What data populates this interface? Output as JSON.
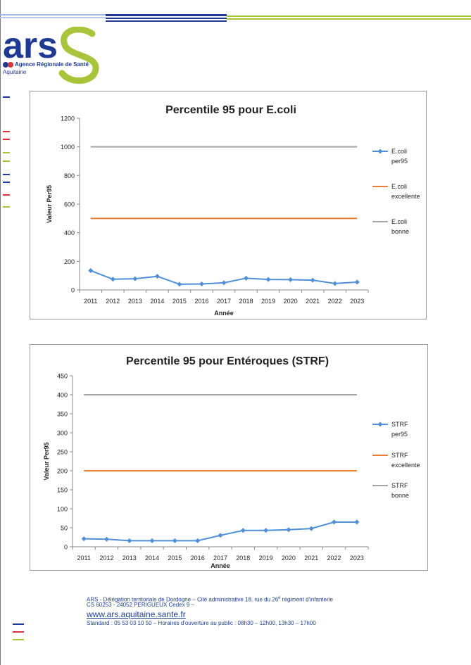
{
  "header": {
    "logo_text": "ars",
    "logo_caption_line1": "Agence Régionale de Santé",
    "logo_caption_line2": "Aquitaine"
  },
  "colors": {
    "navy": "#1f3a93",
    "green": "#a8c43a",
    "red": "#d9343b",
    "series_line": "#4f8fd6",
    "excellent_line": "#ed7d31",
    "good_line": "#a5a5a5"
  },
  "chart_data": [
    {
      "type": "line",
      "title": "Percentile 95 pour E.coli",
      "xlabel": "Année",
      "ylabel": "Valeur Per95",
      "categories": [
        "2011",
        "2012",
        "2013",
        "2014",
        "2015",
        "2016",
        "2017",
        "2018",
        "2019",
        "2020",
        "2021",
        "2022",
        "2023"
      ],
      "ylim": [
        0,
        1200
      ],
      "yticks": [
        0,
        200,
        400,
        600,
        800,
        1000,
        1200
      ],
      "grid": false,
      "legend_position": "right",
      "series": [
        {
          "name": "E.coli per95",
          "legend_lines": [
            "E.coli",
            "per95"
          ],
          "color": "#4f8fd6",
          "markers": true,
          "values": [
            135,
            75,
            78,
            95,
            40,
            42,
            50,
            82,
            73,
            72,
            68,
            45,
            55
          ]
        },
        {
          "name": "E.coli excellente",
          "legend_lines": [
            "E.coli",
            "excellente"
          ],
          "color": "#ed7d31",
          "markers": false,
          "values": [
            500,
            500,
            500,
            500,
            500,
            500,
            500,
            500,
            500,
            500,
            500,
            500,
            500
          ]
        },
        {
          "name": "E.coli bonne",
          "legend_lines": [
            "E.coli",
            "bonne"
          ],
          "color": "#a5a5a5",
          "markers": false,
          "values": [
            1000,
            1000,
            1000,
            1000,
            1000,
            1000,
            1000,
            1000,
            1000,
            1000,
            1000,
            1000,
            1000
          ]
        }
      ]
    },
    {
      "type": "line",
      "title": "Percentile 95 pour Entéroques (STRF)",
      "xlabel": "Année",
      "ylabel": "Valeur Per95",
      "categories": [
        "2011",
        "2012",
        "2013",
        "2014",
        "2015",
        "2016",
        "2017",
        "2018",
        "2019",
        "2020",
        "2021",
        "2022",
        "2023"
      ],
      "ylim": [
        0,
        450
      ],
      "yticks": [
        0,
        50,
        100,
        150,
        200,
        250,
        300,
        350,
        400,
        450
      ],
      "grid": false,
      "legend_position": "right",
      "series": [
        {
          "name": "STRF per95",
          "legend_lines": [
            "STRF",
            "per95"
          ],
          "color": "#4f8fd6",
          "markers": true,
          "values": [
            21,
            20,
            16,
            16,
            16,
            16,
            30,
            43,
            43,
            45,
            48,
            65,
            65
          ]
        },
        {
          "name": "STRF excellente",
          "legend_lines": [
            "STRF",
            "excellente"
          ],
          "color": "#ed7d31",
          "markers": false,
          "values": [
            200,
            200,
            200,
            200,
            200,
            200,
            200,
            200,
            200,
            200,
            200,
            200,
            200
          ]
        },
        {
          "name": "STRF bonne",
          "legend_lines": [
            "STRF",
            "bonne"
          ],
          "color": "#a5a5a5",
          "markers": false,
          "values": [
            400,
            400,
            400,
            400,
            400,
            400,
            400,
            400,
            400,
            400,
            400,
            400,
            400
          ]
        }
      ]
    }
  ],
  "footer": {
    "line1": "ARS - Délégation territoriale de Dordogne – Cité administrative 18, rue du 26",
    "line1_sup": "e",
    "line1_end": " régiment d'infanterie",
    "line2": "CS 60253 - 24052 PERIGUEUX Cedex 9 –",
    "url": "www.ars.aquitaine.sante.fr",
    "line3": "Standard : 05 53 03 10 50 – Horaires d'ouverture au public : 08h30 – 12h00, 13h30 – 17h00"
  }
}
